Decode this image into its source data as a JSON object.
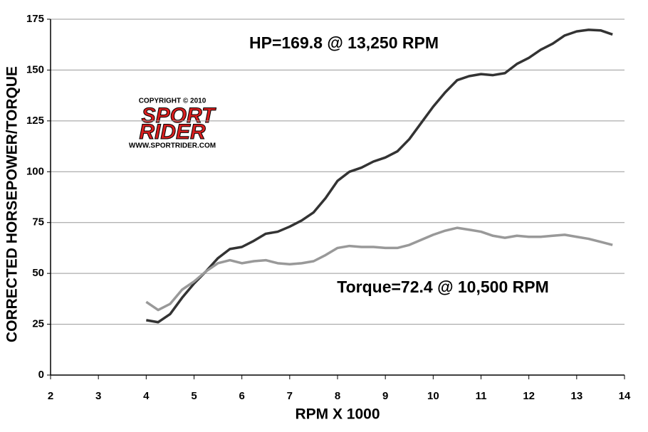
{
  "chart_data": {
    "type": "line",
    "annotations": [
      "HP=169.8 @ 13,250 RPM",
      "Torque=72.4 @ 10,500 RPM"
    ],
    "logo": {
      "copyright": "COPYRIGHT © 2010",
      "line1": "SPORT",
      "line2": "RIDER",
      "url": "WWW.SPORTRIDER.COM"
    },
    "x_label": "RPM X 1000",
    "y_label": "CORRECTED HORSEPOWER/TORQUE",
    "x": [
      4,
      4.25,
      4.5,
      4.75,
      5,
      5.25,
      5.5,
      5.75,
      6,
      6.25,
      6.5,
      6.75,
      7,
      7.25,
      7.5,
      7.75,
      8,
      8.25,
      8.5,
      8.75,
      9,
      9.25,
      9.5,
      9.75,
      10,
      10.25,
      10.5,
      10.75,
      11,
      11.25,
      11.5,
      11.75,
      12,
      12.25,
      12.5,
      12.75,
      13,
      13.25,
      13.5,
      13.75
    ],
    "series": [
      {
        "color": "#333333",
        "values": [
          27,
          26,
          30,
          38,
          45,
          51,
          57.5,
          62,
          63,
          66,
          69.5,
          70.5,
          73,
          76,
          80,
          87,
          95.5,
          100,
          102,
          105,
          107,
          110,
          116,
          124,
          132,
          139,
          145,
          147,
          148,
          147.5,
          148.5,
          153,
          156,
          160,
          163,
          167,
          169,
          169.8,
          169.5,
          167.5
        ]
      },
      {
        "color": "#999999",
        "values": [
          36,
          32,
          35,
          42,
          46,
          51,
          55,
          56.5,
          55,
          56,
          56.5,
          55,
          54.5,
          55,
          56,
          59,
          62.5,
          63.5,
          63,
          63,
          62.5,
          62.5,
          64,
          66.5,
          69,
          71,
          72.4,
          71.5,
          70.5,
          68.5,
          67.5,
          68.5,
          68,
          68,
          68.5,
          69,
          68,
          67,
          65.5,
          64
        ]
      }
    ],
    "xlim": [
      2,
      14
    ],
    "xticks": [
      2,
      3,
      4,
      5,
      6,
      7,
      8,
      9,
      10,
      11,
      12,
      13,
      14
    ],
    "ylim": [
      0,
      175
    ],
    "yticks": [
      0,
      25,
      50,
      75,
      100,
      125,
      150,
      175
    ],
    "grid": true
  }
}
